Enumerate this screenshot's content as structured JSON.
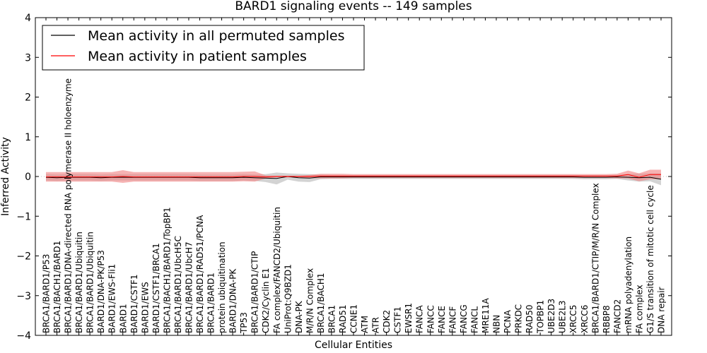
{
  "chart_data": {
    "type": "line",
    "title": "BARD1 signaling events -- 149 samples",
    "xlabel": "Cellular Entities",
    "ylabel": "Inferred Activity",
    "ylim": [
      -4,
      4
    ],
    "yticks": [
      -4,
      -3,
      -2,
      -1,
      0,
      1,
      2,
      3,
      4
    ],
    "ytick_labels": [
      "−4",
      "−3",
      "−2",
      "−1",
      "0",
      "1",
      "2",
      "3",
      "4"
    ],
    "grid": false,
    "legend_position": "top-left",
    "categories": [
      "BRCA1/BARD1/P53",
      "BRCA1/BACH1/BARD1",
      "BRCA1/BARD1/DNA-directed RNA polymerase II holoenzyme",
      "BRCA1/BARD1/Ubiquitin",
      "BRCA1/BARD1/Ubiquitin",
      "BARD1/DNA-PK/P53",
      "BARD1/EWS-Fli1",
      "BARD1",
      "BARD1/CSTF1",
      "BARD1/EWS",
      "BARD1/CSTF1/BRCA1",
      "BRCA1/BACH1/BARD1/TopBP1",
      "BRCA1/BARD1/UbcH5C",
      "BRCA1/BARD1/UbcH7",
      "BRCA1/BARD1/RAD51/PCNA",
      "BRCA1/BARD1",
      "protein ubiquitination",
      "BARD1/DNA-PK",
      "TP53",
      "BRCA1/BARD1/CTIP",
      "CDK2/Cyclin E1",
      "FA complex/FANCD2/Ubiquitin",
      "UniProt:Q9BZD1",
      "DNA-PK",
      "M/R/N Complex",
      "BRCA1/BACH1",
      "BRCA1",
      "RAD51",
      "CCNE1",
      "ATM",
      "ATR",
      "CDK2",
      "CSTF1",
      "EWSR1",
      "FANCA",
      "FANCC",
      "FANCE",
      "FANCF",
      "FANCG",
      "FANCL",
      "MRE11A",
      "NBN",
      "PCNA",
      "PRKDC",
      "RAD50",
      "TOPBP1",
      "UBE2D3",
      "UBE2L3",
      "XRCC5",
      "XRCC6",
      "BRCA1/BARD1/CTIP/M/R/N Complex",
      "RBBP8",
      "FANCD2",
      "mRNA polyadenylation",
      "FA complex",
      "G1/S transition of mitotic cell cycle",
      "DNA repair"
    ],
    "series": [
      {
        "name": "Mean activity in all permuted samples",
        "color": "#000000",
        "band_color": "#c8c8c8",
        "values": [
          -0.02,
          -0.03,
          -0.02,
          -0.02,
          -0.02,
          -0.03,
          -0.02,
          -0.02,
          -0.02,
          -0.02,
          -0.02,
          -0.02,
          -0.02,
          -0.02,
          -0.03,
          -0.03,
          -0.03,
          -0.03,
          -0.02,
          -0.03,
          -0.04,
          -0.05,
          0.0,
          -0.03,
          -0.04,
          -0.01,
          -0.01,
          -0.01,
          -0.01,
          -0.01,
          -0.01,
          -0.01,
          -0.01,
          -0.01,
          -0.01,
          -0.01,
          -0.01,
          -0.01,
          -0.01,
          -0.01,
          -0.01,
          -0.01,
          -0.01,
          -0.01,
          -0.01,
          -0.01,
          -0.01,
          -0.01,
          -0.01,
          -0.02,
          -0.02,
          -0.02,
          -0.01,
          -0.02,
          -0.03,
          -0.02,
          -0.07
        ],
        "band": [
          0.08,
          0.08,
          0.08,
          0.08,
          0.08,
          0.08,
          0.08,
          0.08,
          0.08,
          0.08,
          0.08,
          0.08,
          0.08,
          0.08,
          0.08,
          0.08,
          0.08,
          0.08,
          0.08,
          0.08,
          0.1,
          0.15,
          0.08,
          0.1,
          0.1,
          0.06,
          0.05,
          0.05,
          0.05,
          0.05,
          0.05,
          0.05,
          0.05,
          0.05,
          0.05,
          0.05,
          0.05,
          0.05,
          0.05,
          0.05,
          0.05,
          0.05,
          0.05,
          0.05,
          0.05,
          0.05,
          0.05,
          0.05,
          0.05,
          0.05,
          0.05,
          0.05,
          0.05,
          0.08,
          0.1,
          0.1,
          0.15
        ]
      },
      {
        "name": "Mean activity in patient samples",
        "color": "#ff0000",
        "band_color": "#f08080",
        "values": [
          -0.01,
          -0.01,
          -0.01,
          -0.01,
          -0.01,
          -0.01,
          -0.01,
          0.0,
          -0.01,
          -0.01,
          -0.01,
          -0.01,
          -0.01,
          -0.01,
          -0.01,
          -0.01,
          -0.01,
          -0.01,
          0.0,
          0.0,
          -0.01,
          0.0,
          0.0,
          0.0,
          0.0,
          0.01,
          0.01,
          0.01,
          0.01,
          0.01,
          0.01,
          0.01,
          0.01,
          0.01,
          0.01,
          0.01,
          0.01,
          0.01,
          0.01,
          0.01,
          0.01,
          0.01,
          0.01,
          0.01,
          0.01,
          0.01,
          0.01,
          0.01,
          0.01,
          0.01,
          0.01,
          0.01,
          0.01,
          0.05,
          -0.02,
          0.05,
          0.05
        ],
        "band": [
          0.12,
          0.12,
          0.12,
          0.12,
          0.12,
          0.12,
          0.12,
          0.16,
          0.12,
          0.12,
          0.12,
          0.12,
          0.12,
          0.12,
          0.12,
          0.12,
          0.12,
          0.12,
          0.12,
          0.13,
          0.04,
          0.02,
          0.02,
          0.02,
          0.04,
          0.06,
          0.06,
          0.06,
          0.05,
          0.05,
          0.05,
          0.05,
          0.05,
          0.05,
          0.05,
          0.05,
          0.05,
          0.05,
          0.05,
          0.05,
          0.05,
          0.05,
          0.05,
          0.05,
          0.05,
          0.05,
          0.05,
          0.05,
          0.05,
          0.05,
          0.05,
          0.05,
          0.06,
          0.1,
          0.1,
          0.12,
          0.12
        ]
      }
    ]
  }
}
